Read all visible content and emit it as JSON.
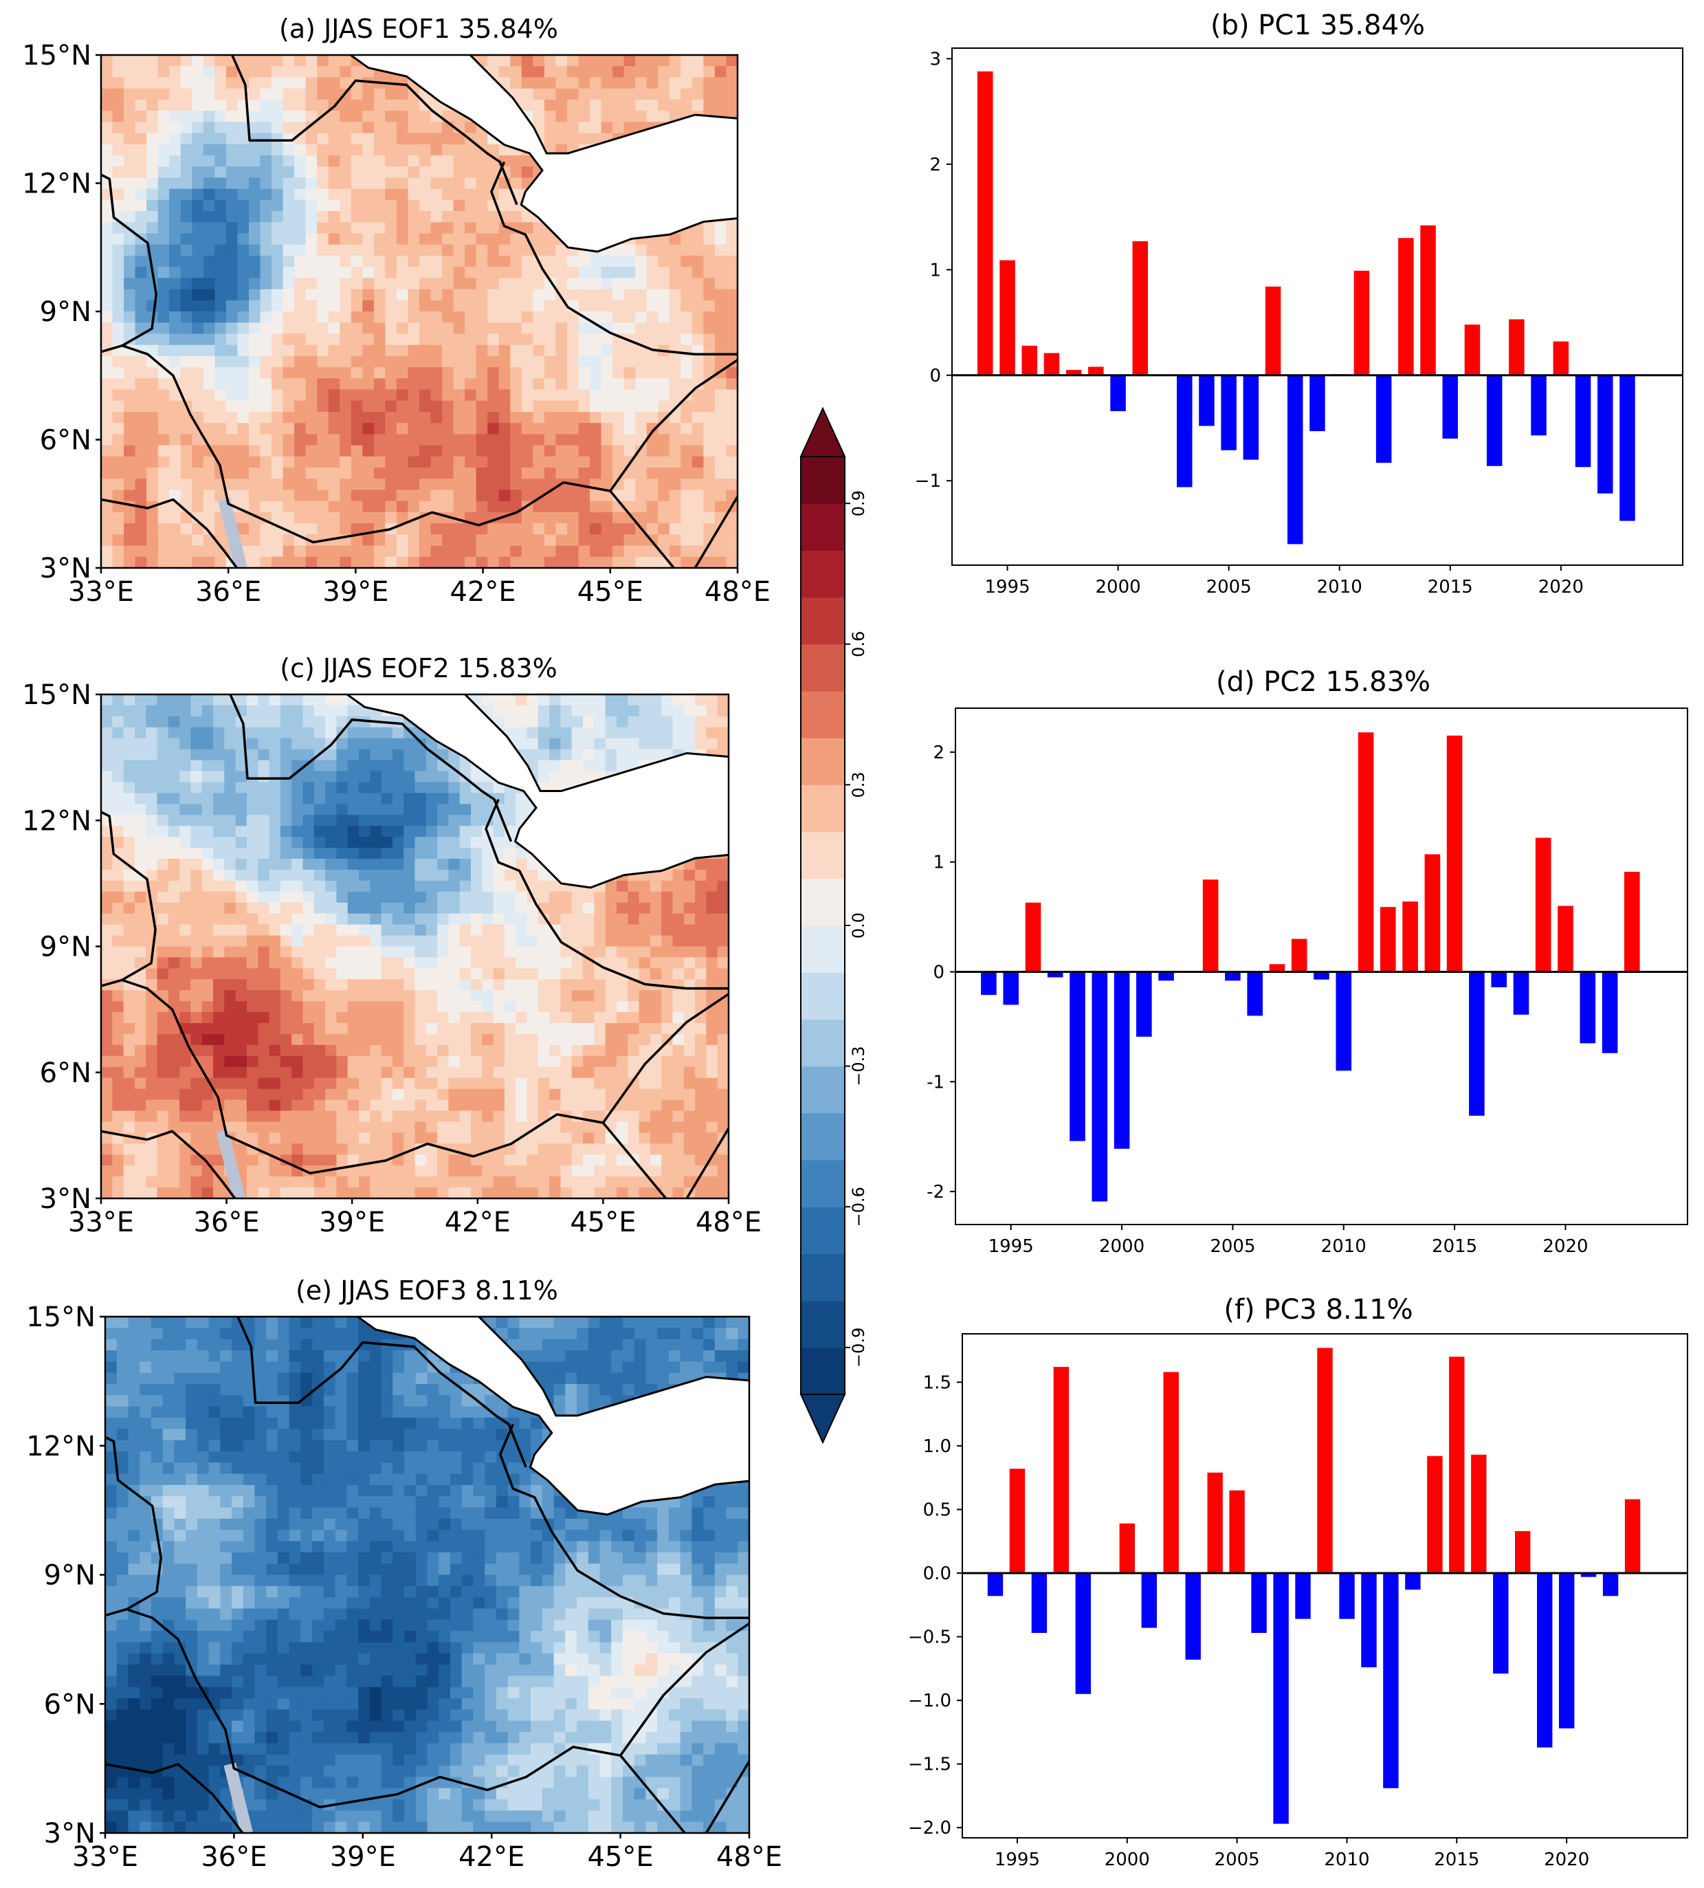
{
  "maps": [
    {
      "title": "(a) JJAS EOF1 35.84%",
      "pattern": "eof1"
    },
    {
      "title": "(c) JJAS  EOF2 15.83%",
      "pattern": "eof2"
    },
    {
      "title": "(e) JJAS  EOF3 8.11%",
      "pattern": "eof3"
    }
  ],
  "map_axes": {
    "lat_ticks": [
      "15°N",
      "12°N",
      "9°N",
      "6°N",
      "3°N"
    ],
    "lon_ticks": [
      "33°E",
      "36°E",
      "39°E",
      "42°E",
      "45°E",
      "48°E"
    ]
  },
  "colorbar": {
    "ticks": [
      0.9,
      0.6,
      0.3,
      0.0,
      -0.3,
      -0.6,
      -0.9
    ],
    "tick_labels": [
      "0.9",
      "0.6",
      "0.3",
      "0.0",
      "−0.3",
      "−0.6",
      "−0.9"
    ],
    "range": [
      -1.0,
      1.0
    ],
    "colors": [
      "#0a3b72",
      "#144c87",
      "#1f5f9b",
      "#2b6fac",
      "#3f82bc",
      "#5b98c9",
      "#7daed6",
      "#a2c7e2",
      "#c3dbec",
      "#e1ebf3",
      "#f4eeea",
      "#fad9c6",
      "#f8bfa0",
      "#f2a07c",
      "#e4785e",
      "#d25b4a",
      "#bf3a36",
      "#a9202b",
      "#8c0f23",
      "#6c0a1c"
    ]
  },
  "colors": {
    "positive": "#ff0000",
    "negative": "#0000ff",
    "ocean": "#ffffff",
    "borders": "#000000"
  },
  "chart_data": [
    {
      "type": "bar",
      "title": "(b) PC1 35.84%",
      "x": [
        1994,
        1995,
        1996,
        1997,
        1998,
        1999,
        2000,
        2001,
        2002,
        2003,
        2004,
        2005,
        2006,
        2007,
        2008,
        2009,
        2010,
        2011,
        2012,
        2013,
        2014,
        2015,
        2016,
        2017,
        2018,
        2019,
        2020,
        2021,
        2022,
        2023
      ],
      "values": [
        2.88,
        1.09,
        0.28,
        0.21,
        0.05,
        0.08,
        -0.34,
        1.27,
        0.0,
        -1.06,
        -0.48,
        -0.71,
        -0.8,
        0.84,
        -1.6,
        -0.53,
        0.01,
        0.99,
        -0.83,
        1.3,
        1.42,
        -0.6,
        0.48,
        -0.86,
        0.53,
        -0.57,
        0.32,
        -0.87,
        -1.12,
        -1.38
      ],
      "xlim": [
        1992.5,
        2025.5
      ],
      "ylim": [
        -1.8,
        3.1
      ],
      "yticks": [
        3,
        2,
        1,
        0,
        -1
      ],
      "yticklabels": [
        "3",
        "2",
        "1",
        "0",
        "−1"
      ],
      "xticks": [
        1995,
        2000,
        2005,
        2010,
        2015,
        2020
      ],
      "xticklabels": [
        "1995",
        "2000",
        "2005",
        "2010",
        "2015",
        "2020"
      ]
    },
    {
      "type": "bar",
      "title": "(d) PC2 15.83%",
      "x": [
        1994,
        1995,
        1996,
        1997,
        1998,
        1999,
        2000,
        2001,
        2002,
        2003,
        2004,
        2005,
        2006,
        2007,
        2008,
        2009,
        2010,
        2011,
        2012,
        2013,
        2014,
        2015,
        2016,
        2017,
        2018,
        2019,
        2020,
        2021,
        2022,
        2023
      ],
      "values": [
        -0.21,
        -0.3,
        0.63,
        -0.05,
        -1.54,
        -2.09,
        -1.61,
        -0.59,
        -0.08,
        0.0,
        0.84,
        -0.08,
        -0.4,
        0.07,
        0.3,
        -0.07,
        -0.9,
        2.18,
        0.59,
        0.64,
        1.07,
        2.15,
        -1.31,
        -0.14,
        -0.39,
        1.22,
        0.6,
        -0.65,
        -0.74,
        0.91
      ],
      "xlim": [
        1992.5,
        2025.5
      ],
      "ylim": [
        -2.3,
        2.4
      ],
      "yticks": [
        2,
        1,
        0,
        -1,
        -2
      ],
      "yticklabels": [
        "2",
        "1",
        "0",
        "-1",
        "-2"
      ],
      "xticks": [
        1995,
        2000,
        2005,
        2010,
        2015,
        2020
      ],
      "xticklabels": [
        "1995",
        "2000",
        "2005",
        "2010",
        "2015",
        "2020"
      ]
    },
    {
      "type": "bar",
      "title": "(f) PC3 8.11%",
      "x": [
        1994,
        1995,
        1996,
        1997,
        1998,
        1999,
        2000,
        2001,
        2002,
        2003,
        2004,
        2005,
        2006,
        2007,
        2008,
        2009,
        2010,
        2011,
        2012,
        2013,
        2014,
        2015,
        2016,
        2017,
        2018,
        2019,
        2020,
        2021,
        2022,
        2023
      ],
      "values": [
        -0.18,
        0.82,
        -0.47,
        1.62,
        -0.95,
        0.0,
        0.39,
        -0.43,
        1.58,
        -0.68,
        0.79,
        0.65,
        -0.47,
        -1.97,
        -0.36,
        1.77,
        -0.36,
        -0.74,
        -1.69,
        -0.13,
        0.92,
        1.7,
        0.93,
        -0.79,
        0.33,
        -1.37,
        -1.22,
        -0.03,
        -0.18,
        0.58
      ],
      "xlim": [
        1992.5,
        2025.5
      ],
      "ylim": [
        -2.08,
        1.88
      ],
      "yticks": [
        1.5,
        1.0,
        0.5,
        0.0,
        -0.5,
        -1.0,
        -1.5,
        -2.0
      ],
      "yticklabels": [
        "1.5",
        "1.0",
        "0.5",
        "0.0",
        "−0.5",
        "−1.0",
        "−1.5",
        "−2.0"
      ],
      "xticks": [
        1995,
        2000,
        2005,
        2010,
        2015,
        2020
      ],
      "xticklabels": [
        "1995",
        "2000",
        "2005",
        "2010",
        "2015",
        "2020"
      ]
    }
  ]
}
